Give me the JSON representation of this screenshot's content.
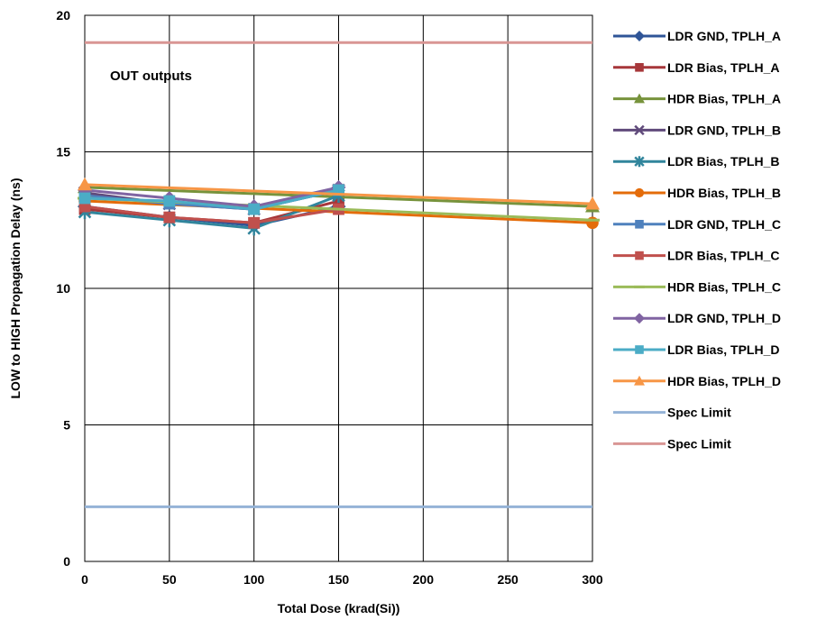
{
  "chart_data": {
    "type": "line",
    "title": "",
    "annotation": "OUT outputs",
    "xlabel": "Total Dose (krad(Si))",
    "ylabel": "LOW to HIGH Propagation Delay (ns)",
    "xlim": [
      0,
      300
    ],
    "ylim": [
      0,
      20
    ],
    "x_ticks": [
      0,
      50,
      100,
      150,
      200,
      250,
      300
    ],
    "y_ticks": [
      0,
      5,
      10,
      15,
      20
    ],
    "grid": true,
    "legend_position": "right",
    "series": [
      {
        "name": "LDR GND, TPLH_A",
        "color": "#2F5597",
        "marker": "diamond",
        "points": [
          [
            0,
            13.0
          ],
          [
            50,
            12.6
          ],
          [
            100,
            12.3
          ],
          [
            150,
            13.0
          ]
        ]
      },
      {
        "name": "LDR Bias, TPLH_A",
        "color": "#A7373A",
        "marker": "square",
        "points": [
          [
            0,
            12.9
          ],
          [
            50,
            12.6
          ],
          [
            100,
            12.4
          ],
          [
            150,
            13.2
          ]
        ]
      },
      {
        "name": "HDR Bias, TPLH_A",
        "color": "#77933C",
        "marker": "triangle",
        "points": [
          [
            0,
            13.7
          ],
          [
            300,
            13.0
          ]
        ]
      },
      {
        "name": "LDR GND, TPLH_B",
        "color": "#604A7B",
        "marker": "x",
        "points": [
          [
            0,
            13.5
          ],
          [
            50,
            13.1
          ],
          [
            100,
            12.9
          ],
          [
            150,
            13.6
          ]
        ]
      },
      {
        "name": "LDR Bias, TPLH_B",
        "color": "#31859C",
        "marker": "asterisk",
        "points": [
          [
            0,
            12.8
          ],
          [
            50,
            12.5
          ],
          [
            100,
            12.2
          ],
          [
            150,
            13.4
          ]
        ]
      },
      {
        "name": "HDR Bias, TPLH_B",
        "color": "#E46C0A",
        "marker": "circle",
        "points": [
          [
            0,
            13.2
          ],
          [
            300,
            12.4
          ]
        ]
      },
      {
        "name": "LDR GND, TPLH_C",
        "color": "#4F81BD",
        "marker": "square",
        "points": [
          [
            0,
            13.4
          ],
          [
            50,
            13.1
          ],
          [
            100,
            12.9
          ],
          [
            150,
            13.6
          ]
        ]
      },
      {
        "name": "LDR Bias, TPLH_C",
        "color": "#C0504D",
        "marker": "square",
        "points": [
          [
            0,
            13.0
          ],
          [
            50,
            12.6
          ],
          [
            100,
            12.4
          ],
          [
            150,
            12.9
          ]
        ]
      },
      {
        "name": "HDR Bias, TPLH_C",
        "color": "#9BBB59",
        "marker": "dash",
        "points": [
          [
            0,
            13.3
          ],
          [
            300,
            12.5
          ]
        ]
      },
      {
        "name": "LDR GND, TPLH_D",
        "color": "#8064A2",
        "marker": "diamond",
        "points": [
          [
            0,
            13.6
          ],
          [
            50,
            13.3
          ],
          [
            100,
            13.0
          ],
          [
            150,
            13.7
          ]
        ]
      },
      {
        "name": "LDR Bias, TPLH_D",
        "color": "#4BACC6",
        "marker": "square",
        "points": [
          [
            0,
            13.3
          ],
          [
            50,
            13.2
          ],
          [
            100,
            12.9
          ],
          [
            150,
            13.6
          ]
        ]
      },
      {
        "name": "HDR Bias, TPLH_D",
        "color": "#F79646",
        "marker": "triangle",
        "points": [
          [
            0,
            13.8
          ],
          [
            300,
            13.1
          ]
        ]
      },
      {
        "name": "Spec Limit",
        "color": "#95B3D7",
        "marker": "none",
        "points": [
          [
            0,
            2.0
          ],
          [
            300,
            2.0
          ]
        ]
      },
      {
        "name": "Spec Limit",
        "color": "#D99694",
        "marker": "none",
        "points": [
          [
            0,
            19.0
          ],
          [
            300,
            19.0
          ]
        ]
      }
    ]
  }
}
